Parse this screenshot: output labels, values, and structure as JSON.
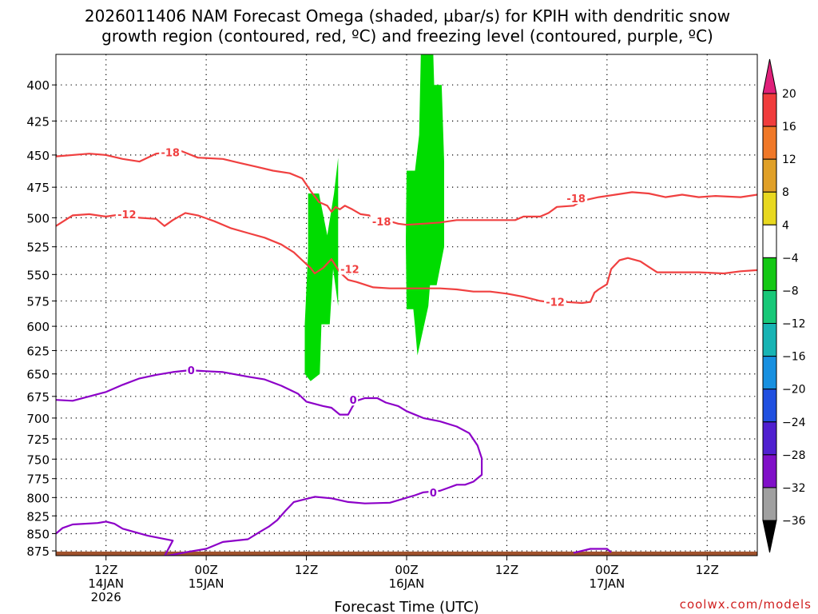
{
  "title_line1": "2026011406 NAM Forecast Omega (shaded, µbar/s) for KPIH with dendritic snow",
  "title_line2": "growth region (contoured, red, ºC) and freezing level (contoured, purple, ºC)",
  "credit": "coolwx.com/models",
  "chart_data": {
    "type": "heatmap",
    "title": "2026011406 NAM Forecast Omega (shaded, µbar/s) for KPIH with dendritic snow growth region (contoured, red, ºC) and freezing level (contoured, purple, ºC)",
    "xlabel": "Forecast Time (UTC)",
    "ylabel": "",
    "x_unit": "hours from 2026-01-14 06Z",
    "xlim": [
      0,
      84
    ],
    "y_axis": "pressure (hPa), inverted, log-pressure",
    "ylim": [
      882,
      380
    ],
    "y_ticks": [
      400,
      425,
      450,
      475,
      500,
      525,
      550,
      575,
      600,
      625,
      650,
      675,
      700,
      725,
      750,
      775,
      800,
      825,
      850,
      875
    ],
    "x_ticks": [
      {
        "x": 6,
        "lines": [
          "12Z",
          "14JAN",
          "2026"
        ]
      },
      {
        "x": 18,
        "lines": [
          "00Z",
          "15JAN"
        ]
      },
      {
        "x": 30,
        "lines": [
          "12Z"
        ]
      },
      {
        "x": 42,
        "lines": [
          "00Z",
          "16JAN"
        ]
      },
      {
        "x": 54,
        "lines": [
          "12Z"
        ]
      },
      {
        "x": 66,
        "lines": [
          "00Z",
          "17JAN"
        ]
      },
      {
        "x": 78,
        "lines": [
          "12Z"
        ]
      }
    ],
    "grid": true,
    "colorbar": {
      "levels": [
        20,
        16,
        12,
        8,
        4,
        -4,
        -8,
        -12,
        -16,
        -20,
        -24,
        -28,
        -32,
        -36
      ],
      "colors": [
        "#f03c3c",
        "#f07828",
        "#e0a028",
        "#e8d820",
        "#ffffff",
        "#14c814",
        "#18c878",
        "#18b4b4",
        "#1890e0",
        "#2050e0",
        "#5020d0",
        "#8010c8",
        "#a0a0a0"
      ],
      "top_arrow_color": "#e0207a",
      "bottom_arrow_color": "#000000"
    },
    "shaded_regions": [
      {
        "value_range": [
          -8,
          -4
        ],
        "color": "#00dc00",
        "polygon": [
          [
            30.2,
            480
          ],
          [
            31.5,
            480
          ],
          [
            32.5,
            515
          ],
          [
            33.3,
            480
          ],
          [
            33.8,
            452
          ],
          [
            33.8,
            580
          ],
          [
            33.2,
            545
          ],
          [
            32.8,
            598
          ],
          [
            31.8,
            598
          ],
          [
            31.6,
            650
          ],
          [
            30.5,
            658
          ],
          [
            29.8,
            650
          ],
          [
            29.8,
            598
          ],
          [
            30.2,
            530
          ]
        ]
      },
      {
        "value_range": [
          -8,
          -4
        ],
        "color": "#00dc00",
        "polygon": [
          [
            42.0,
            462
          ],
          [
            43.0,
            462
          ],
          [
            43.5,
            435
          ],
          [
            43.7,
            380
          ],
          [
            45.2,
            380
          ],
          [
            45.3,
            400
          ],
          [
            46.2,
            400
          ],
          [
            46.5,
            455
          ],
          [
            46.5,
            525
          ],
          [
            45.6,
            560
          ],
          [
            44.8,
            560
          ],
          [
            44.6,
            580
          ],
          [
            43.3,
            630
          ],
          [
            43.0,
            600
          ],
          [
            42.8,
            583
          ],
          [
            42.0,
            583
          ],
          [
            41.9,
            520
          ]
        ]
      }
    ],
    "series": [
      {
        "name": "-18",
        "color": "#f04040",
        "points": [
          [
            0,
            451
          ],
          [
            4,
            449
          ],
          [
            6,
            450
          ],
          [
            8,
            453
          ],
          [
            10,
            455
          ],
          [
            12,
            449
          ],
          [
            15,
            447
          ],
          [
            17,
            452
          ],
          [
            20,
            453
          ],
          [
            22,
            456
          ],
          [
            24,
            459
          ],
          [
            26,
            462
          ],
          [
            28,
            464
          ],
          [
            29.5,
            468
          ],
          [
            30.5,
            478
          ],
          [
            31.5,
            487
          ],
          [
            32.5,
            490
          ],
          [
            33,
            495
          ],
          [
            33.5,
            491
          ],
          [
            34,
            493
          ],
          [
            34.6,
            490
          ],
          [
            35.5,
            493
          ],
          [
            36.5,
            497
          ],
          [
            37.5,
            498
          ],
          [
            38.6,
            502
          ],
          [
            40,
            503
          ],
          [
            41,
            505
          ],
          [
            42,
            506
          ],
          [
            44,
            505
          ],
          [
            46,
            504
          ],
          [
            48,
            502
          ],
          [
            50,
            502
          ],
          [
            53,
            502
          ],
          [
            55,
            502
          ],
          [
            56,
            499
          ],
          [
            58,
            499
          ],
          [
            59,
            496
          ],
          [
            60,
            491
          ],
          [
            62,
            490
          ],
          [
            63,
            486
          ],
          [
            65,
            483
          ],
          [
            67,
            481
          ],
          [
            69,
            479
          ],
          [
            71,
            480
          ],
          [
            73,
            483
          ],
          [
            75,
            481
          ],
          [
            77,
            483
          ],
          [
            79,
            482
          ],
          [
            82,
            483
          ],
          [
            84,
            481
          ]
        ]
      },
      {
        "name": "-12",
        "color": "#f04040",
        "points": [
          [
            0,
            507
          ],
          [
            2,
            498
          ],
          [
            4,
            497
          ],
          [
            6,
            499
          ],
          [
            8,
            497
          ],
          [
            10,
            500
          ],
          [
            12,
            501
          ],
          [
            13,
            507
          ],
          [
            14,
            502
          ],
          [
            15.5,
            496
          ],
          [
            17,
            498
          ],
          [
            19,
            503
          ],
          [
            21,
            509
          ],
          [
            23,
            513
          ],
          [
            25,
            517
          ],
          [
            27,
            523
          ],
          [
            28.5,
            530
          ],
          [
            29.5,
            537
          ],
          [
            30.5,
            544
          ],
          [
            31,
            549
          ],
          [
            32,
            544
          ],
          [
            33,
            536
          ],
          [
            34,
            548
          ],
          [
            35,
            555
          ],
          [
            36,
            557
          ],
          [
            38,
            562
          ],
          [
            40,
            563
          ],
          [
            42,
            563
          ],
          [
            44,
            563
          ],
          [
            46,
            563
          ],
          [
            48,
            564
          ],
          [
            50,
            566
          ],
          [
            52,
            566
          ],
          [
            54,
            568
          ],
          [
            56,
            571
          ],
          [
            58,
            575
          ],
          [
            59,
            576
          ],
          [
            61,
            576
          ],
          [
            63,
            577
          ],
          [
            64,
            576
          ],
          [
            64.5,
            567
          ],
          [
            65,
            564
          ],
          [
            66,
            559
          ],
          [
            66.5,
            545
          ],
          [
            67.5,
            537
          ],
          [
            68.5,
            535
          ],
          [
            70,
            538
          ],
          [
            71,
            543
          ],
          [
            72,
            548
          ],
          [
            74,
            548
          ],
          [
            77,
            548
          ],
          [
            80,
            549
          ],
          [
            82,
            547
          ],
          [
            84,
            546
          ]
        ]
      },
      {
        "name": "0",
        "color": "#8c00c8",
        "points": [
          [
            0,
            679
          ],
          [
            2,
            680
          ],
          [
            4,
            675
          ],
          [
            6,
            670
          ],
          [
            8,
            662
          ],
          [
            10,
            655
          ],
          [
            12,
            651
          ],
          [
            14,
            648
          ],
          [
            16,
            646
          ],
          [
            18,
            647
          ],
          [
            20,
            648
          ],
          [
            23,
            653
          ],
          [
            25,
            656
          ],
          [
            27,
            663
          ],
          [
            29,
            672
          ],
          [
            30,
            681
          ],
          [
            32,
            686
          ],
          [
            33,
            688
          ],
          [
            34,
            696
          ],
          [
            35,
            696
          ],
          [
            35.5,
            687
          ],
          [
            36,
            680
          ],
          [
            37,
            677
          ],
          [
            38.5,
            677
          ],
          [
            39.5,
            682
          ],
          [
            41,
            686
          ],
          [
            42,
            692
          ],
          [
            44,
            700
          ],
          [
            46,
            704
          ],
          [
            48,
            710
          ],
          [
            49.5,
            718
          ],
          [
            50.5,
            733
          ],
          [
            51,
            749
          ],
          [
            51,
            770
          ],
          [
            50,
            779
          ],
          [
            49,
            783
          ],
          [
            48,
            783
          ],
          [
            47,
            787
          ],
          [
            46,
            791
          ],
          [
            45,
            792
          ],
          [
            44,
            793
          ],
          [
            43,
            797
          ],
          [
            40,
            807
          ],
          [
            37,
            808
          ],
          [
            35,
            806
          ],
          [
            33,
            801
          ],
          [
            31,
            799
          ],
          [
            28.5,
            806
          ],
          [
            27.5,
            818
          ],
          [
            26.5,
            831
          ],
          [
            25.5,
            840
          ],
          [
            24.5,
            847
          ],
          [
            23,
            858
          ],
          [
            20,
            862
          ],
          [
            18,
            872
          ],
          [
            16,
            876
          ],
          [
            13,
            883
          ]
        ]
      },
      {
        "name": "0",
        "color": "#8c00c8",
        "points": [
          [
            13,
            883
          ],
          [
            14,
            860
          ],
          [
            11,
            853
          ],
          [
            8,
            843
          ],
          [
            7,
            836
          ],
          [
            6,
            833
          ],
          [
            5,
            835
          ],
          [
            2,
            837
          ],
          [
            0.8,
            842
          ],
          [
            0,
            850
          ]
        ]
      },
      {
        "name": "0",
        "color": "#8c00c8",
        "points": [
          [
            62,
            878
          ],
          [
            64,
            872
          ],
          [
            66,
            872
          ],
          [
            66.5,
            877
          ]
        ]
      }
    ],
    "contour_labels": [
      {
        "text": "-18",
        "x": 13.7,
        "y": 448,
        "color": "#f04040"
      },
      {
        "text": "-12",
        "x": 8.5,
        "y": 497,
        "color": "#f04040"
      },
      {
        "text": "-18",
        "x": 39,
        "y": 503,
        "color": "#f04040"
      },
      {
        "text": "-12",
        "x": 35.2,
        "y": 545,
        "color": "#f04040"
      },
      {
        "text": "-18",
        "x": 62.3,
        "y": 484,
        "color": "#f04040"
      },
      {
        "text": "-12",
        "x": 59.8,
        "y": 576,
        "color": "#f04040"
      },
      {
        "text": "0",
        "x": 16.2,
        "y": 646,
        "color": "#8c00c8"
      },
      {
        "text": "0",
        "x": 35.6,
        "y": 679,
        "color": "#8c00c8"
      },
      {
        "text": "0",
        "x": 45.2,
        "y": 793,
        "color": "#8c00c8"
      }
    ],
    "terrain": {
      "color": "#a0522d",
      "level": 876
    }
  }
}
